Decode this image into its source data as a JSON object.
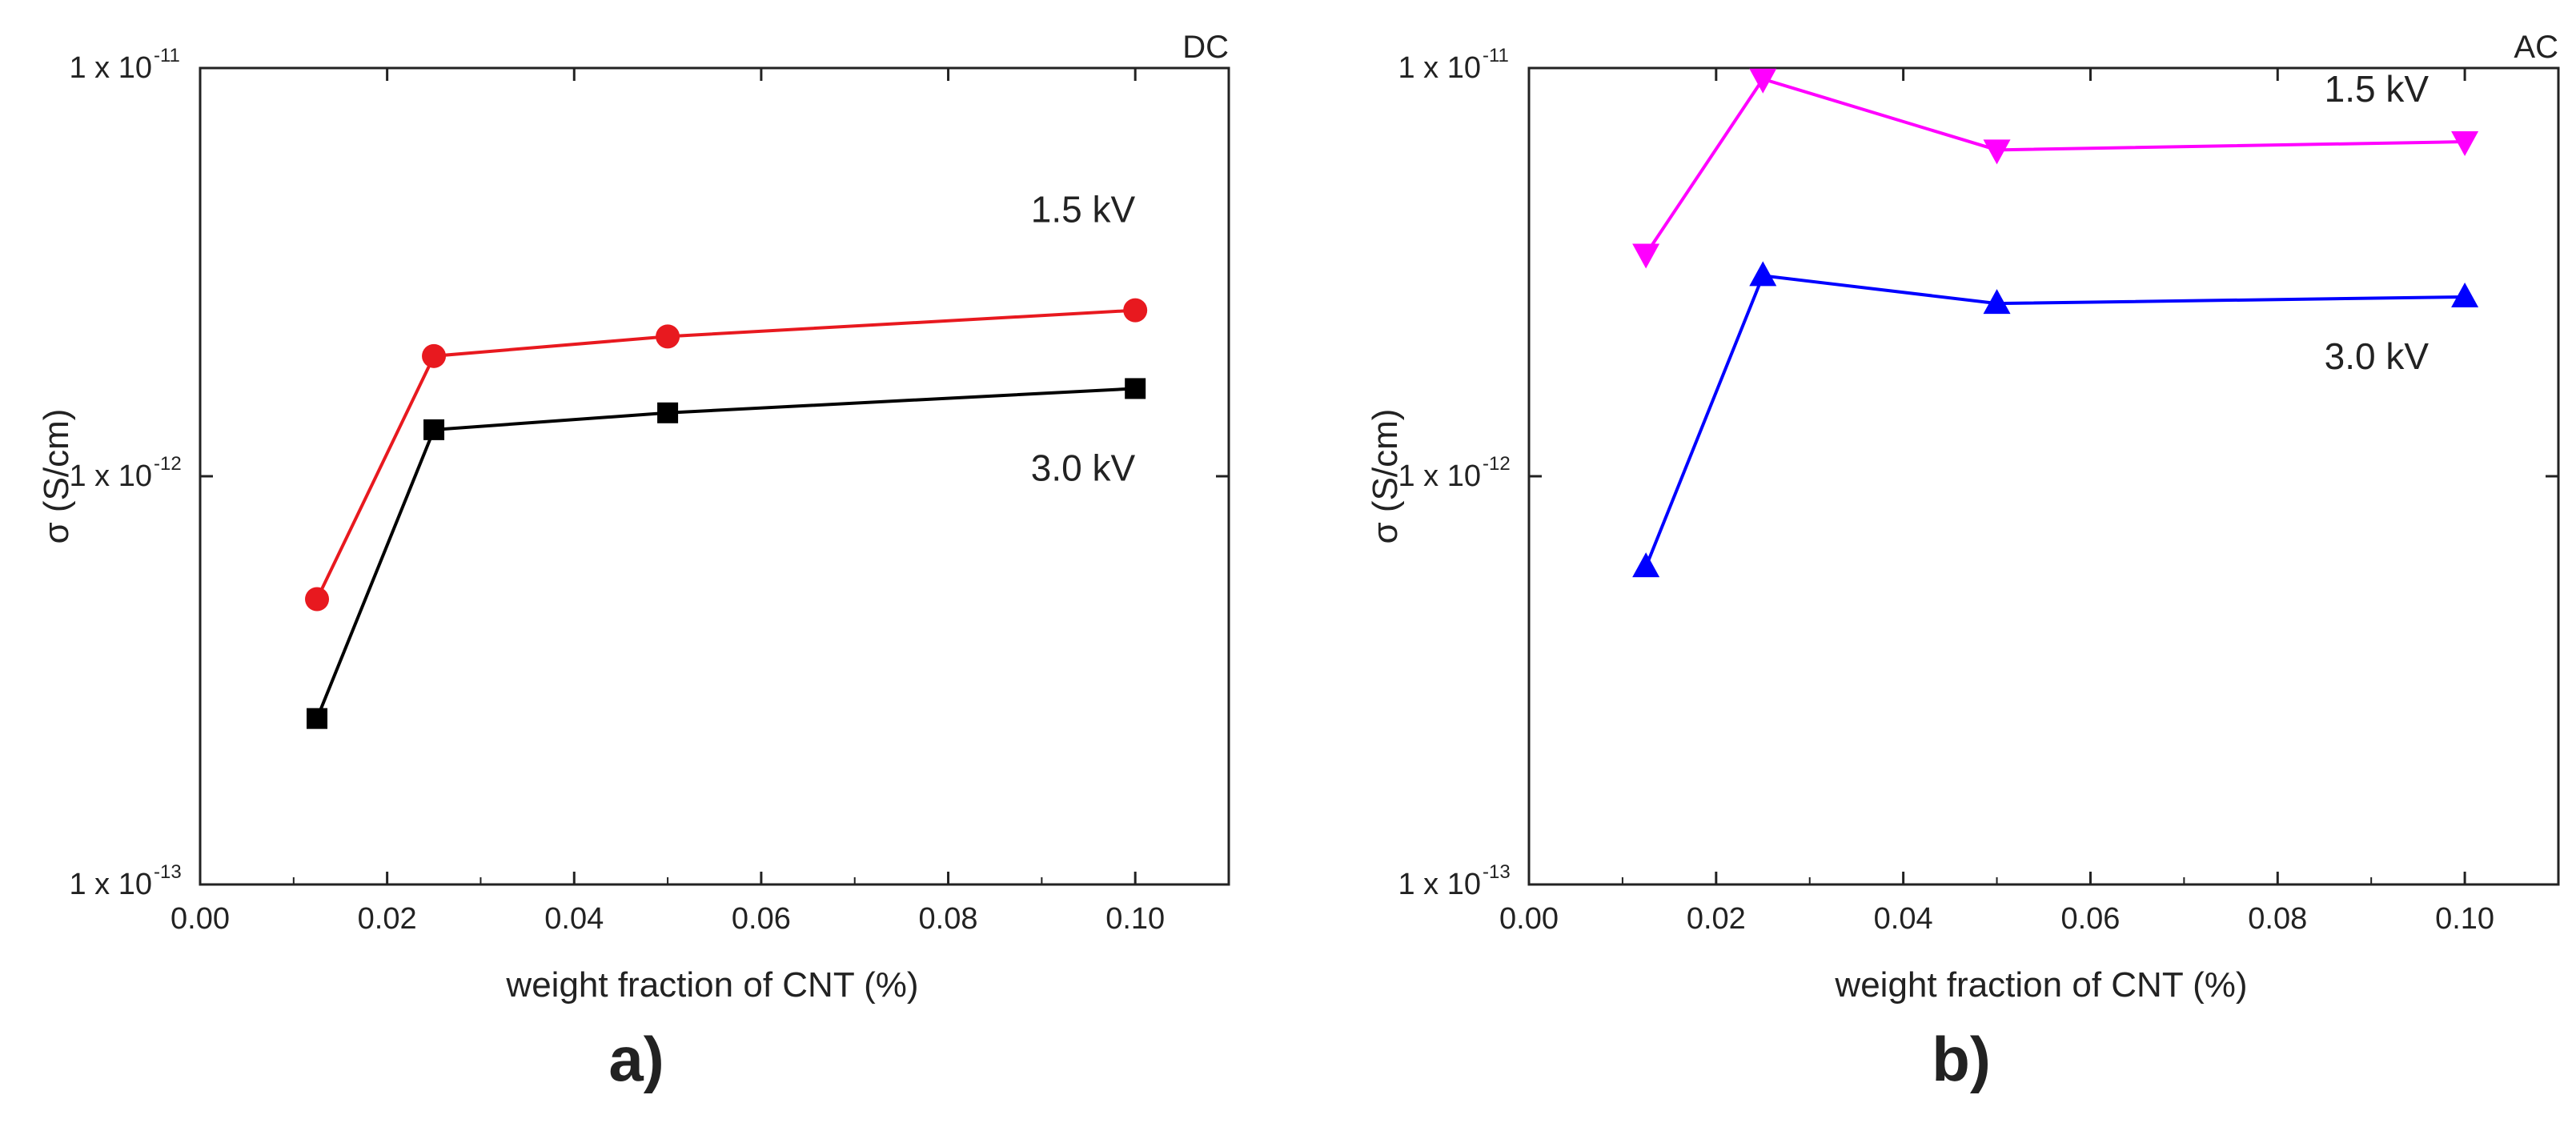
{
  "chart_data": [
    {
      "type": "line",
      "panel_label": "a)",
      "corner_label": "DC",
      "xlabel": "weight fraction of CNT (%)",
      "ylabel": "σ (S/cm)",
      "xlim": [
        0.0,
        0.11
      ],
      "ylim": [
        1e-13,
        1e-11
      ],
      "yscale": "log",
      "x_ticks": [
        "0.00",
        "0.02",
        "0.04",
        "0.06",
        "0.08",
        "0.10"
      ],
      "y_ticks": [
        {
          "base": "1 x 10",
          "exp": "-13",
          "value": 1e-13
        },
        {
          "base": "1 x 10",
          "exp": "-12",
          "value": 1e-12
        },
        {
          "base": "1 x 10",
          "exp": "-11",
          "value": 1e-11
        }
      ],
      "series": [
        {
          "name": "1.5 kV",
          "color": "#e8191f",
          "marker": "circle",
          "x": [
            0.0125,
            0.025,
            0.05,
            0.1
          ],
          "y": [
            5e-13,
            1.97e-12,
            2.2e-12,
            2.55e-12
          ]
        },
        {
          "name": "3.0 kV",
          "color": "#000000",
          "marker": "square",
          "x": [
            0.0125,
            0.025,
            0.05,
            0.1
          ],
          "y": [
            2.55e-13,
            1.3e-12,
            1.43e-12,
            1.64e-12
          ]
        }
      ]
    },
    {
      "type": "line",
      "panel_label": "b)",
      "corner_label": "AC",
      "xlabel": "weight fraction of CNT (%)",
      "ylabel": "σ (S/cm)",
      "xlim": [
        0.0,
        0.11
      ],
      "ylim": [
        1e-13,
        1e-11
      ],
      "yscale": "log",
      "x_ticks": [
        "0.00",
        "0.02",
        "0.04",
        "0.06",
        "0.08",
        "0.10"
      ],
      "y_ticks": [
        {
          "base": "1 x 10",
          "exp": "-13",
          "value": 1e-13
        },
        {
          "base": "1 x 10",
          "exp": "-12",
          "value": 1e-12
        },
        {
          "base": "1 x 10",
          "exp": "-11",
          "value": 1e-11
        }
      ],
      "series": [
        {
          "name": "1.5 kV",
          "color": "#ff00ff",
          "marker": "triangle-down",
          "x": [
            0.0125,
            0.025,
            0.05,
            0.1
          ],
          "y": [
            3.5e-12,
            9.4e-12,
            6.3e-12,
            6.6e-12
          ]
        },
        {
          "name": "3.0 kV",
          "color": "#0000ff",
          "marker": "triangle-up",
          "x": [
            0.0125,
            0.025,
            0.05,
            0.1
          ],
          "y": [
            6e-13,
            3.1e-12,
            2.65e-12,
            2.75e-12
          ]
        }
      ]
    }
  ]
}
